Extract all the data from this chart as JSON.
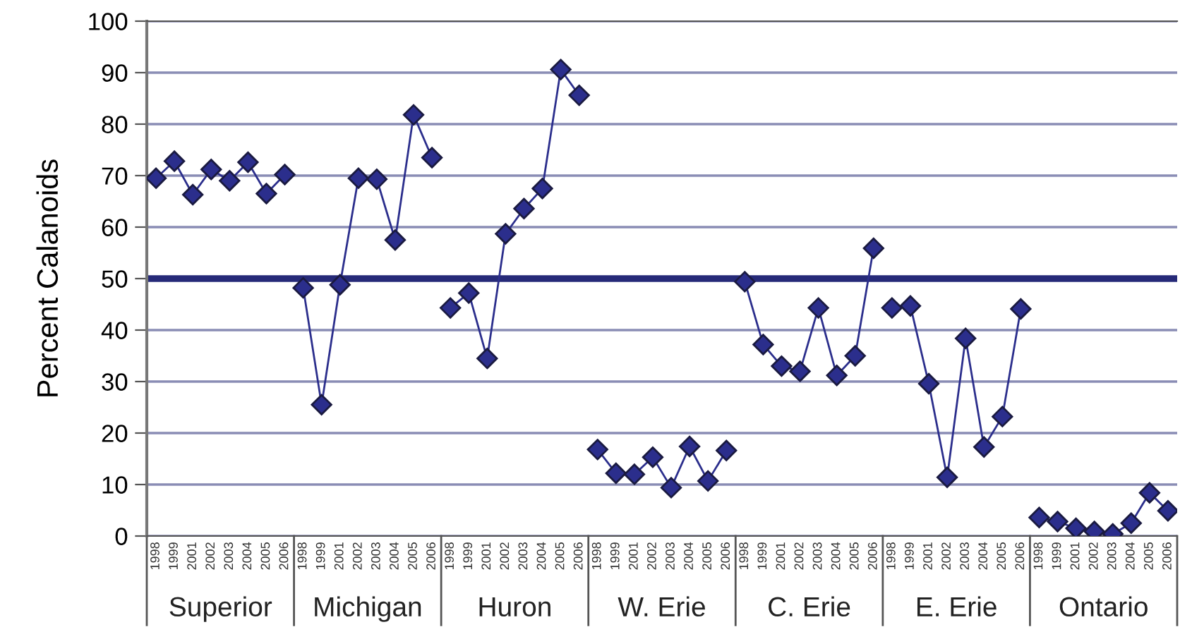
{
  "chart_data": {
    "type": "line",
    "ylabel": "Percent Calanoids",
    "categories": [
      "1998",
      "1999",
      "2001",
      "2002",
      "2003",
      "2004",
      "2005",
      "2006",
      "1998",
      "1999",
      "2001",
      "2002",
      "2003",
      "2004",
      "2005",
      "2006",
      "1998",
      "1999",
      "2001",
      "2002",
      "2003",
      "2004",
      "2005",
      "2006",
      "1998",
      "1999",
      "2001",
      "2002",
      "2003",
      "2004",
      "2005",
      "2006",
      "1998",
      "1999",
      "2001",
      "2002",
      "2003",
      "2004",
      "2005",
      "2006",
      "1998",
      "1999",
      "2001",
      "2002",
      "2003",
      "2004",
      "2005",
      "2006",
      "1998",
      "1999",
      "2001",
      "2002",
      "2003",
      "2004",
      "2005",
      "2006"
    ],
    "series": [
      {
        "color": "#2b2e8c",
        "values": [
          69.5,
          72.8,
          66.3,
          71.2,
          69,
          72.6,
          66.5,
          70.2,
          null,
          null,
          null,
          null,
          null,
          null,
          null,
          null,
          null,
          null,
          null,
          null,
          null,
          null,
          null,
          null,
          null,
          null,
          null,
          null,
          null,
          null,
          null,
          null,
          null,
          null,
          null,
          null,
          null,
          null,
          null,
          null,
          null,
          null,
          null,
          null,
          null,
          null,
          null,
          null,
          null,
          null,
          null,
          null,
          null,
          null,
          null,
          null
        ]
      },
      {
        "color": "#2b2e8c",
        "values": [
          null,
          null,
          null,
          null,
          null,
          null,
          null,
          null,
          48.2,
          25.5,
          48.8,
          69.5,
          69.3,
          57.5,
          81.8,
          73.5,
          null,
          null,
          null,
          null,
          null,
          null,
          null,
          null,
          null,
          null,
          null,
          null,
          null,
          null,
          null,
          null,
          null,
          null,
          null,
          null,
          null,
          null,
          null,
          null,
          null,
          null,
          null,
          null,
          null,
          null,
          null,
          null,
          null,
          null,
          null,
          null,
          null,
          null,
          null,
          null
        ]
      },
      {
        "color": "#2b2e8c",
        "values": [
          null,
          null,
          null,
          null,
          null,
          null,
          null,
          null,
          null,
          null,
          null,
          null,
          null,
          null,
          null,
          null,
          44.3,
          47.2,
          34.5,
          58.7,
          63.6,
          67.5,
          90.6,
          85.6,
          null,
          null,
          null,
          null,
          null,
          null,
          null,
          null,
          null,
          null,
          null,
          null,
          null,
          null,
          null,
          null,
          null,
          null,
          null,
          null,
          null,
          null,
          null,
          null,
          null,
          null,
          null,
          null,
          null,
          null,
          null,
          null
        ]
      },
      {
        "color": "#2b2e8c",
        "values": [
          null,
          null,
          null,
          null,
          null,
          null,
          null,
          null,
          null,
          null,
          null,
          null,
          null,
          null,
          null,
          null,
          null,
          null,
          null,
          null,
          null,
          null,
          null,
          null,
          16.8,
          12.2,
          12,
          15.3,
          9.4,
          17.4,
          10.7,
          16.6,
          null,
          null,
          null,
          null,
          null,
          null,
          null,
          null,
          null,
          null,
          null,
          null,
          null,
          null,
          null,
          null,
          null,
          null,
          null,
          null,
          null,
          null,
          null,
          null
        ]
      },
      {
        "color": "#2b2e8c",
        "values": [
          null,
          null,
          null,
          null,
          null,
          null,
          null,
          null,
          null,
          null,
          null,
          null,
          null,
          null,
          null,
          null,
          null,
          null,
          null,
          null,
          null,
          null,
          null,
          null,
          null,
          null,
          null,
          null,
          null,
          null,
          null,
          null,
          49.4,
          37.2,
          33,
          32,
          44.3,
          31.2,
          35,
          55.9,
          null,
          null,
          null,
          null,
          null,
          null,
          null,
          null,
          null,
          null,
          null,
          null,
          null,
          null,
          null,
          null
        ]
      },
      {
        "color": "#2b2e8c",
        "values": [
          null,
          null,
          null,
          null,
          null,
          null,
          null,
          null,
          null,
          null,
          null,
          null,
          null,
          null,
          null,
          null,
          null,
          null,
          null,
          null,
          null,
          null,
          null,
          null,
          null,
          null,
          null,
          null,
          null,
          null,
          null,
          null,
          null,
          null,
          null,
          null,
          null,
          null,
          null,
          null,
          44.3,
          44.7,
          29.6,
          11.4,
          38.4,
          17.3,
          23.2,
          44.1,
          null,
          null,
          null,
          null,
          null,
          null,
          null,
          null
        ]
      },
      {
        "color": "#2b2e8c",
        "values": [
          null,
          null,
          null,
          null,
          null,
          null,
          null,
          null,
          null,
          null,
          null,
          null,
          null,
          null,
          null,
          null,
          null,
          null,
          null,
          null,
          null,
          null,
          null,
          null,
          null,
          null,
          null,
          null,
          null,
          null,
          null,
          null,
          null,
          null,
          null,
          null,
          null,
          null,
          null,
          null,
          null,
          null,
          null,
          null,
          null,
          null,
          null,
          null,
          3.6,
          2.8,
          1.5,
          0.9,
          0.4,
          2.5,
          8.4,
          4.9
        ]
      }
    ],
    "ylim": [
      0,
      100
    ],
    "yticks": [
      0,
      10,
      20,
      30,
      40,
      50,
      60,
      70,
      80,
      90,
      100
    ],
    "ref_lines": [
      {
        "axis": "y",
        "value": 50,
        "color": "#262a78"
      }
    ],
    "annotations": [
      "Superior",
      "Michigan",
      "Huron",
      "W. Erie",
      "C. Erie",
      "E. Erie",
      "Ontario"
    ],
    "grid": "y",
    "marker": "diamond",
    "line_style": "solid",
    "legend": false
  }
}
